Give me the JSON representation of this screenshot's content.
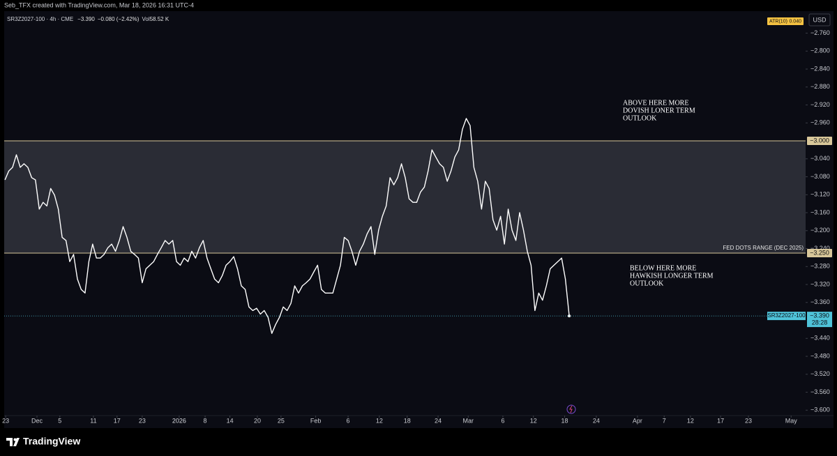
{
  "header": "Seb_TFX created with TradingView.com, Mar 18, 2026 16:31 UTC-4",
  "brand": "TradingView",
  "chart_data": {
    "type": "line",
    "legend": {
      "symbol": "SR3Z2027-100 · 4h · CME",
      "close": "−3.390",
      "change": "−0.080 (−2.42%)",
      "volume_label": "Vol",
      "volume": "58.52 K"
    },
    "indicator": {
      "name": "ATR(10)",
      "value": "0.040"
    },
    "currency": "USD",
    "color": "#ffffff",
    "values": [
      -3.087,
      -3.067,
      -3.059,
      -3.031,
      -3.059,
      -3.051,
      -3.059,
      -3.082,
      -3.087,
      -3.152,
      -3.137,
      -3.145,
      -3.106,
      -3.121,
      -3.152,
      -3.215,
      -3.222,
      -3.269,
      -3.253,
      -3.308,
      -3.331,
      -3.339,
      -3.269,
      -3.23,
      -3.261,
      -3.261,
      -3.253,
      -3.238,
      -3.23,
      -3.246,
      -3.222,
      -3.191,
      -3.215,
      -3.246,
      -3.253,
      -3.261,
      -3.316,
      -3.285,
      -3.277,
      -3.269,
      -3.253,
      -3.238,
      -3.222,
      -3.23,
      -3.222,
      -3.269,
      -3.277,
      -3.261,
      -3.269,
      -3.246,
      -3.261,
      -3.238,
      -3.222,
      -3.261,
      -3.285,
      -3.308,
      -3.316,
      -3.3,
      -3.277,
      -3.269,
      -3.258,
      -3.285,
      -3.323,
      -3.331,
      -3.37,
      -3.378,
      -3.373,
      -3.386,
      -3.378,
      -3.393,
      -3.429,
      -3.409,
      -3.393,
      -3.37,
      -3.378,
      -3.362,
      -3.323,
      -3.339,
      -3.323,
      -3.316,
      -3.308,
      -3.292,
      -3.277,
      -3.331,
      -3.339,
      -3.339,
      -3.339,
      -3.308,
      -3.277,
      -3.215,
      -3.222,
      -3.246,
      -3.277,
      -3.246,
      -3.23,
      -3.207,
      -3.191,
      -3.253,
      -3.199,
      -3.168,
      -3.145,
      -3.082,
      -3.098,
      -3.082,
      -3.051,
      -3.082,
      -3.129,
      -3.137,
      -3.137,
      -3.114,
      -3.103,
      -3.067,
      -3.02,
      -3.036,
      -3.051,
      -3.059,
      -3.09,
      -3.067,
      -3.036,
      -3.02,
      -2.974,
      -2.95,
      -2.966,
      -3.059,
      -3.09,
      -3.152,
      -3.09,
      -3.106,
      -3.176,
      -3.199,
      -3.168,
      -3.23,
      -3.152,
      -3.199,
      -3.222,
      -3.16,
      -3.199,
      -3.246,
      -3.277,
      -3.378,
      -3.339,
      -3.355,
      -3.323,
      -3.285,
      -3.277,
      -3.269,
      -3.261,
      -3.308,
      -3.39
    ],
    "xlim": [
      -0.2,
      210
    ],
    "xticks": [
      {
        "value": 0.2,
        "label": "23"
      },
      {
        "value": 8.4,
        "label": "Dec"
      },
      {
        "value": 14.4,
        "label": "5"
      },
      {
        "value": 23.2,
        "label": "11"
      },
      {
        "value": 29.4,
        "label": "17"
      },
      {
        "value": 36,
        "label": "23"
      },
      {
        "value": 45.7,
        "label": "2026"
      },
      {
        "value": 52.5,
        "label": "8"
      },
      {
        "value": 59,
        "label": "14"
      },
      {
        "value": 66.2,
        "label": "20"
      },
      {
        "value": 72.4,
        "label": "25"
      },
      {
        "value": 81.5,
        "label": "Feb"
      },
      {
        "value": 90,
        "label": "6"
      },
      {
        "value": 98.2,
        "label": "12"
      },
      {
        "value": 105.5,
        "label": "18"
      },
      {
        "value": 113.6,
        "label": "24"
      },
      {
        "value": 121.5,
        "label": "Mar"
      },
      {
        "value": 130.6,
        "label": "6"
      },
      {
        "value": 138.6,
        "label": "12"
      },
      {
        "value": 146.8,
        "label": "18"
      },
      {
        "value": 155.1,
        "label": "24"
      },
      {
        "value": 165.9,
        "label": "Apr"
      },
      {
        "value": 172.9,
        "label": "7"
      },
      {
        "value": 179.8,
        "label": "12"
      },
      {
        "value": 187.7,
        "label": "17"
      },
      {
        "value": 195,
        "label": "23"
      },
      {
        "value": 206.2,
        "label": "May"
      }
    ],
    "ylim": [
      -3.612,
      -2.711
    ],
    "yticks": [
      {
        "value": -2.76,
        "label": "−2.760"
      },
      {
        "value": -2.8,
        "label": "−2.800"
      },
      {
        "value": -2.84,
        "label": "−2.840"
      },
      {
        "value": -2.88,
        "label": "−2.880"
      },
      {
        "value": -2.92,
        "label": "−2.920"
      },
      {
        "value": -2.96,
        "label": "−2.960"
      },
      {
        "value": -3.04,
        "label": "−3.040"
      },
      {
        "value": -3.08,
        "label": "−3.080"
      },
      {
        "value": -3.12,
        "label": "−3.120"
      },
      {
        "value": -3.16,
        "label": "−3.160"
      },
      {
        "value": -3.2,
        "label": "−3.200"
      },
      {
        "value": -3.24,
        "label": "−3.240"
      },
      {
        "value": -3.28,
        "label": "−3.280"
      },
      {
        "value": -3.32,
        "label": "−3.320"
      },
      {
        "value": -3.36,
        "label": "−3.360"
      },
      {
        "value": -3.44,
        "label": "−3.440"
      },
      {
        "value": -3.48,
        "label": "−3.480"
      },
      {
        "value": -3.52,
        "label": "−3.520"
      },
      {
        "value": -3.56,
        "label": "−3.560"
      },
      {
        "value": -3.6,
        "label": "−3.600"
      }
    ],
    "hlines": [
      {
        "value": -3.0,
        "label": "−3.000",
        "color": "#d8c79a"
      },
      {
        "value": -3.25,
        "label": "−3.250",
        "color": "#d8c79a",
        "text": "FED DOTS RANGE (DEC 2025)"
      }
    ],
    "zone_color": "#2a2c35",
    "last_price": {
      "value": -3.39,
      "label": "−3.390",
      "name": "SR3Z2027-100",
      "countdown": "28:28",
      "color": "#4fc3d9"
    },
    "annotations": [
      [
        "ABOVE HERE MORE",
        "DOVISH LONER TERM",
        "OUTLOOK"
      ],
      [
        "BELOW HERE MORE",
        "HAWKISH LONGER TERM",
        "OUTLOOK"
      ]
    ]
  }
}
